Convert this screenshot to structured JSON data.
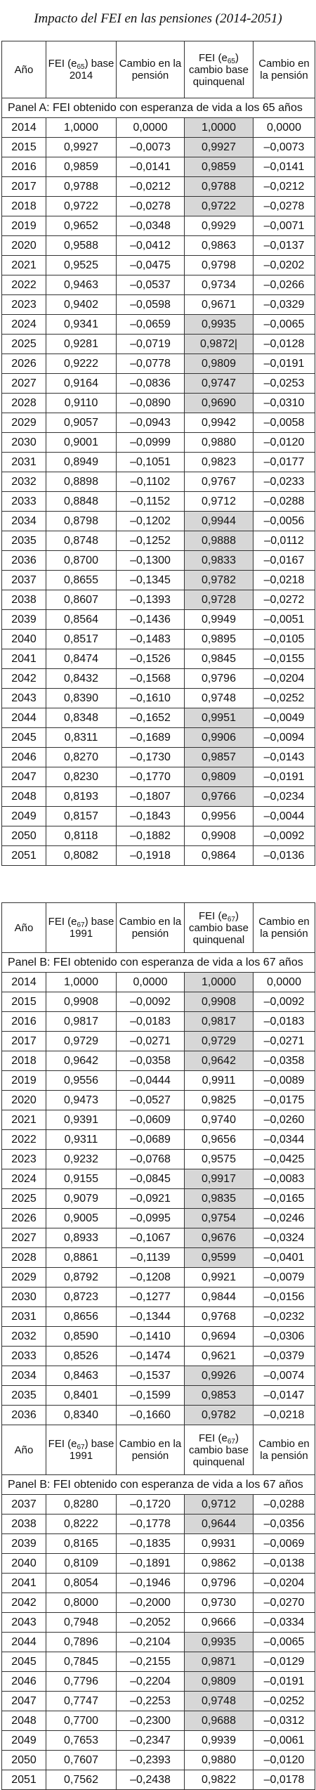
{
  "title": "Impacto del FEI en las pensiones (2014-2051)",
  "table1": {
    "headers": {
      "year": "Año",
      "fei_base_pre": "FEI (e",
      "fei_base_sub": "65",
      "fei_base_post": ") base 2014",
      "change1": "Cambio en la pensión",
      "fei_q_pre": "FEI (e",
      "fei_q_sub": "65",
      "fei_q_post": ") cambio base quinquenal",
      "change2": "Cambio en la pensión"
    },
    "panel": "Panel A: FEI obtenido con esperanza de vida a los 65 años",
    "rows": [
      {
        "year": "2014",
        "fei": "1,0000",
        "c1": "0,0000",
        "feiq": "1,0000",
        "c2": "0,0000",
        "hl": true
      },
      {
        "year": "2015",
        "fei": "0,9927",
        "c1": "–0,0073",
        "feiq": "0,9927",
        "c2": "–0,0073",
        "hl": true
      },
      {
        "year": "2016",
        "fei": "0,9859",
        "c1": "–0,0141",
        "feiq": "0,9859",
        "c2": "–0,0141",
        "hl": true
      },
      {
        "year": "2017",
        "fei": "0,9788",
        "c1": "–0,0212",
        "feiq": "0,9788",
        "c2": "–0,0212",
        "hl": true
      },
      {
        "year": "2018",
        "fei": "0,9722",
        "c1": "–0,0278",
        "feiq": "0,9722",
        "c2": "–0,0278",
        "hl": true
      },
      {
        "year": "2019",
        "fei": "0,9652",
        "c1": "–0,0348",
        "feiq": "0,9929",
        "c2": "–0,0071",
        "hl": false
      },
      {
        "year": "2020",
        "fei": "0,9588",
        "c1": "–0,0412",
        "feiq": "0,9863",
        "c2": "–0,0137",
        "hl": false
      },
      {
        "year": "2021",
        "fei": "0,9525",
        "c1": "–0,0475",
        "feiq": "0,9798",
        "c2": "–0,0202",
        "hl": false
      },
      {
        "year": "2022",
        "fei": "0,9463",
        "c1": "–0,0537",
        "feiq": "0,9734",
        "c2": "–0,0266",
        "hl": false
      },
      {
        "year": "2023",
        "fei": "0,9402",
        "c1": "–0,0598",
        "feiq": "0,9671",
        "c2": "–0,0329",
        "hl": false
      },
      {
        "year": "2024",
        "fei": "0,9341",
        "c1": "–0,0659",
        "feiq": "0,9935",
        "c2": "–0,0065",
        "hl": true
      },
      {
        "year": "2025",
        "fei": "0,9281",
        "c1": "–0,0719",
        "feiq": "0,9872|",
        "c2": "–0,0128",
        "hl": true
      },
      {
        "year": "2026",
        "fei": "0,9222",
        "c1": "–0,0778",
        "feiq": "0,9809",
        "c2": "–0,0191",
        "hl": true
      },
      {
        "year": "2027",
        "fei": "0,9164",
        "c1": "–0,0836",
        "feiq": "0,9747",
        "c2": "–0,0253",
        "hl": true
      },
      {
        "year": "2028",
        "fei": "0,9110",
        "c1": "–0,0890",
        "feiq": "0,9690",
        "c2": "–0,0310",
        "hl": true
      },
      {
        "year": "2029",
        "fei": "0,9057",
        "c1": "–0,0943",
        "feiq": "0,9942",
        "c2": "–0,0058",
        "hl": false
      },
      {
        "year": "2030",
        "fei": "0,9001",
        "c1": "–0,0999",
        "feiq": "0,9880",
        "c2": "–0,0120",
        "hl": false
      },
      {
        "year": "2031",
        "fei": "0,8949",
        "c1": "–0,1051",
        "feiq": "0,9823",
        "c2": "–0,0177",
        "hl": false
      },
      {
        "year": "2032",
        "fei": "0,8898",
        "c1": "–0,1102",
        "feiq": "0,9767",
        "c2": "–0,0233",
        "hl": false
      },
      {
        "year": "2033",
        "fei": "0,8848",
        "c1": "–0,1152",
        "feiq": "0,9712",
        "c2": "–0,0288",
        "hl": false
      },
      {
        "year": "2034",
        "fei": "0,8798",
        "c1": "–0,1202",
        "feiq": "0,9944",
        "c2": "–0,0056",
        "hl": true
      },
      {
        "year": "2035",
        "fei": "0,8748",
        "c1": "–0,1252",
        "feiq": "0,9888",
        "c2": "–0,0112",
        "hl": true
      },
      {
        "year": "2036",
        "fei": "0,8700",
        "c1": "–0,1300",
        "feiq": "0,9833",
        "c2": "–0,0167",
        "hl": true
      },
      {
        "year": "2037",
        "fei": "0,8655",
        "c1": "–0,1345",
        "feiq": "0,9782",
        "c2": "–0,0218",
        "hl": true
      },
      {
        "year": "2038",
        "fei": "0,8607",
        "c1": "–0,1393",
        "feiq": "0,9728",
        "c2": "–0,0272",
        "hl": true
      },
      {
        "year": "2039",
        "fei": "0,8564",
        "c1": "–0,1436",
        "feiq": "0,9949",
        "c2": "–0,0051",
        "hl": false
      },
      {
        "year": "2040",
        "fei": "0,8517",
        "c1": "–0,1483",
        "feiq": "0,9895",
        "c2": "–0,0105",
        "hl": false
      },
      {
        "year": "2041",
        "fei": "0,8474",
        "c1": "–0,1526",
        "feiq": "0,9845",
        "c2": "–0,0155",
        "hl": false
      },
      {
        "year": "2042",
        "fei": "0,8432",
        "c1": "–0,1568",
        "feiq": "0,9796",
        "c2": "–0,0204",
        "hl": false
      },
      {
        "year": "2043",
        "fei": "0,8390",
        "c1": "–0,1610",
        "feiq": "0,9748",
        "c2": "–0,0252",
        "hl": false
      },
      {
        "year": "2044",
        "fei": "0,8348",
        "c1": "–0,1652",
        "feiq": "0,9951",
        "c2": "–0,0049",
        "hl": true
      },
      {
        "year": "2045",
        "fei": "0,8311",
        "c1": "–0,1689",
        "feiq": "0,9906",
        "c2": "–0,0094",
        "hl": true
      },
      {
        "year": "2046",
        "fei": "0,8270",
        "c1": "–0,1730",
        "feiq": "0,9857",
        "c2": "–0,0143",
        "hl": true
      },
      {
        "year": "2047",
        "fei": "0,8230",
        "c1": "–0,1770",
        "feiq": "0,9809",
        "c2": "–0,0191",
        "hl": true
      },
      {
        "year": "2048",
        "fei": "0,8193",
        "c1": "–0,1807",
        "feiq": "0,9766",
        "c2": "–0,0234",
        "hl": true
      },
      {
        "year": "2049",
        "fei": "0,8157",
        "c1": "–0,1843",
        "feiq": "0,9956",
        "c2": "–0,0044",
        "hl": false
      },
      {
        "year": "2050",
        "fei": "0,8118",
        "c1": "–0,1882",
        "feiq": "0,9908",
        "c2": "–0,0092",
        "hl": false
      },
      {
        "year": "2051",
        "fei": "0,8082",
        "c1": "–0,1918",
        "feiq": "0,9864",
        "c2": "–0,0136",
        "hl": false
      }
    ]
  },
  "table2": {
    "headers": {
      "year": "Año",
      "fei_base_pre": "FEI (e",
      "fei_base_sub": "67",
      "fei_base_post": ") base 1991",
      "change1": "Cambio en la pensión",
      "fei_q_pre": "FEI (e",
      "fei_q_sub": "67",
      "fei_q_post": ") cambio base quinquenal",
      "change2": "Cambio en la pensión"
    },
    "panel": "Panel B: FEI obtenido con esperanza de vida a los 67 años",
    "rows": [
      {
        "year": "2014",
        "fei": "1,0000",
        "c1": "0,0000",
        "feiq": "1,0000",
        "c2": "0,0000",
        "hl": true
      },
      {
        "year": "2015",
        "fei": "0,9908",
        "c1": "–0,0092",
        "feiq": "0,9908",
        "c2": "–0,0092",
        "hl": true
      },
      {
        "year": "2016",
        "fei": "0,9817",
        "c1": "–0,0183",
        "feiq": "0,9817",
        "c2": "–0,0183",
        "hl": true
      },
      {
        "year": "2017",
        "fei": "0,9729",
        "c1": "–0,0271",
        "feiq": "0,9729",
        "c2": "–0,0271",
        "hl": true
      },
      {
        "year": "2018",
        "fei": "0,9642",
        "c1": "–0,0358",
        "feiq": "0,9642",
        "c2": "–0,0358",
        "hl": true
      },
      {
        "year": "2019",
        "fei": "0,9556",
        "c1": "–0,0444",
        "feiq": "0,9911",
        "c2": "–0,0089",
        "hl": false
      },
      {
        "year": "2020",
        "fei": "0,9473",
        "c1": "–0,0527",
        "feiq": "0,9825",
        "c2": "–0,0175",
        "hl": false
      },
      {
        "year": "2021",
        "fei": "0,9391",
        "c1": "–0,0609",
        "feiq": "0,9740",
        "c2": "–0,0260",
        "hl": false
      },
      {
        "year": "2022",
        "fei": "0,9311",
        "c1": "–0,0689",
        "feiq": "0,9656",
        "c2": "–0,0344",
        "hl": false
      },
      {
        "year": "2023",
        "fei": "0,9232",
        "c1": "–0,0768",
        "feiq": "0,9575",
        "c2": "–0,0425",
        "hl": false
      },
      {
        "year": "2024",
        "fei": "0,9155",
        "c1": "–0,0845",
        "feiq": "0,9917",
        "c2": "–0,0083",
        "hl": true
      },
      {
        "year": "2025",
        "fei": "0,9079",
        "c1": "–0,0921",
        "feiq": "0,9835",
        "c2": "–0,0165",
        "hl": true
      },
      {
        "year": "2026",
        "fei": "0,9005",
        "c1": "–0,0995",
        "feiq": "0,9754",
        "c2": "–0,0246",
        "hl": true
      },
      {
        "year": "2027",
        "fei": "0,8933",
        "c1": "–0,1067",
        "feiq": "0,9676",
        "c2": "–0,0324",
        "hl": true
      },
      {
        "year": "2028",
        "fei": "0,8861",
        "c1": "–0,1139",
        "feiq": "0,9599",
        "c2": "–0,0401",
        "hl": true
      },
      {
        "year": "2029",
        "fei": "0,8792",
        "c1": "–0,1208",
        "feiq": "0,9921",
        "c2": "–0,0079",
        "hl": false
      },
      {
        "year": "2030",
        "fei": "0,8723",
        "c1": "–0,1277",
        "feiq": "0,9844",
        "c2": "–0,0156",
        "hl": false
      },
      {
        "year": "2031",
        "fei": "0,8656",
        "c1": "–0,1344",
        "feiq": "0,9768",
        "c2": "–0,0232",
        "hl": false
      },
      {
        "year": "2032",
        "fei": "0,8590",
        "c1": "–0,1410",
        "feiq": "0,9694",
        "c2": "–0,0306",
        "hl": false
      },
      {
        "year": "2033",
        "fei": "0,8526",
        "c1": "–0,1474",
        "feiq": "0,9621",
        "c2": "–0,0379",
        "hl": false
      },
      {
        "year": "2034",
        "fei": "0,8463",
        "c1": "–0,1537",
        "feiq": "0,9926",
        "c2": "–0,0074",
        "hl": true
      },
      {
        "year": "2035",
        "fei": "0,8401",
        "c1": "–0,1599",
        "feiq": "0,9853",
        "c2": "–0,0147",
        "hl": true
      },
      {
        "year": "2036",
        "fei": "0,8340",
        "c1": "–0,1660",
        "feiq": "0,9782",
        "c2": "–0,0218",
        "hl": true
      }
    ]
  },
  "table3": {
    "headers": {
      "year": "Año",
      "fei_base_pre": "FEI (e",
      "fei_base_sub": "67",
      "fei_base_post": ") base 1991",
      "change1": "Cambio en la pensión",
      "fei_q_pre": "FEI (e",
      "fei_q_sub": "67",
      "fei_q_post": ") cambio base quinquenal",
      "change2": "Cambio en la pensión"
    },
    "panel": "Panel B: FEI obtenido con esperanza de vida a los 67 años",
    "rows": [
      {
        "year": "2037",
        "fei": "0,8280",
        "c1": "–0,1720",
        "feiq": "0,9712",
        "c2": "–0,0288",
        "hl": true
      },
      {
        "year": "2038",
        "fei": "0,8222",
        "c1": "–0,1778",
        "feiq": "0,9644",
        "c2": "–0,0356",
        "hl": true
      },
      {
        "year": "2039",
        "fei": "0,8165",
        "c1": "–0,1835",
        "feiq": "0,9931",
        "c2": "–0,0069",
        "hl": false
      },
      {
        "year": "2040",
        "fei": "0,8109",
        "c1": "–0,1891",
        "feiq": "0,9862",
        "c2": "–0,0138",
        "hl": false
      },
      {
        "year": "2041",
        "fei": "0,8054",
        "c1": "–0,1946",
        "feiq": "0,9796",
        "c2": "–0,0204",
        "hl": false
      },
      {
        "year": "2042",
        "fei": "0,8000",
        "c1": "–0,2000",
        "feiq": "0,9730",
        "c2": "–0,0270",
        "hl": false
      },
      {
        "year": "2043",
        "fei": "0,7948",
        "c1": "–0,2052",
        "feiq": "0,9666",
        "c2": "–0,0334",
        "hl": false
      },
      {
        "year": "2044",
        "fei": "0,7896",
        "c1": "–0,2104",
        "feiq": "0,9935",
        "c2": "–0,0065",
        "hl": true
      },
      {
        "year": "2045",
        "fei": "0,7845",
        "c1": "–0,2155",
        "feiq": "0,9871",
        "c2": "–0,0129",
        "hl": true
      },
      {
        "year": "2046",
        "fei": "0,7796",
        "c1": "–0,2204",
        "feiq": "0,9809",
        "c2": "–0,0191",
        "hl": true
      },
      {
        "year": "2047",
        "fei": "0,7747",
        "c1": "–0,2253",
        "feiq": "0,9748",
        "c2": "–0,0252",
        "hl": true
      },
      {
        "year": "2048",
        "fei": "0,7700",
        "c1": "–0,2300",
        "feiq": "0,9688",
        "c2": "–0,0312",
        "hl": true
      },
      {
        "year": "2049",
        "fei": "0,7653",
        "c1": "–0,2347",
        "feiq": "0,9939",
        "c2": "–0,0061",
        "hl": false
      },
      {
        "year": "2050",
        "fei": "0,7607",
        "c1": "–0,2393",
        "feiq": "0,9880",
        "c2": "–0,0120",
        "hl": false
      },
      {
        "year": "2051",
        "fei": "0,7562",
        "c1": "–0,2438",
        "feiq": "0,9822",
        "c2": "–0,0178",
        "hl": false
      }
    ]
  }
}
